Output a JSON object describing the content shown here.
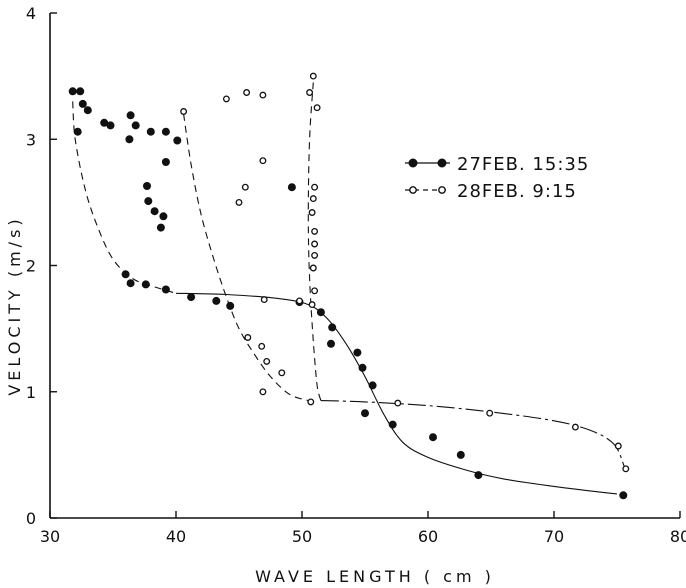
{
  "chart_data": {
    "type": "scatter",
    "xlabel": "WAVE LENGTH ( cm )",
    "ylabel": "VELOCITY (m/s)",
    "xlim": [
      30,
      80
    ],
    "ylim": [
      0,
      4
    ],
    "x_ticks": [
      30,
      40,
      50,
      60,
      70,
      80
    ],
    "y_ticks": [
      0,
      1,
      2,
      3,
      4
    ],
    "grid": false,
    "legend_position": "right",
    "series": [
      {
        "name": "27FEB. 15:35",
        "marker": "filled-circle",
        "line_style": "solid",
        "color": "#111111",
        "points": [
          [
            31.8,
            3.38
          ],
          [
            32.4,
            3.38
          ],
          [
            32.2,
            3.06
          ],
          [
            32.6,
            3.28
          ],
          [
            33.0,
            3.23
          ],
          [
            34.3,
            3.13
          ],
          [
            34.8,
            3.11
          ],
          [
            36.3,
            3.0
          ],
          [
            36.4,
            3.19
          ],
          [
            36.8,
            3.11
          ],
          [
            38.0,
            3.06
          ],
          [
            39.2,
            3.06
          ],
          [
            39.2,
            2.82
          ],
          [
            40.1,
            2.99
          ],
          [
            37.7,
            2.63
          ],
          [
            37.8,
            2.51
          ],
          [
            38.3,
            2.43
          ],
          [
            39.0,
            2.39
          ],
          [
            38.8,
            2.3
          ],
          [
            36.0,
            1.93
          ],
          [
            36.4,
            1.86
          ],
          [
            37.6,
            1.85
          ],
          [
            39.2,
            1.81
          ],
          [
            41.2,
            1.75
          ],
          [
            43.2,
            1.72
          ],
          [
            44.3,
            1.68
          ],
          [
            49.2,
            2.62
          ],
          [
            49.8,
            1.71
          ],
          [
            51.5,
            1.63
          ],
          [
            52.4,
            1.51
          ],
          [
            52.3,
            1.38
          ],
          [
            54.4,
            1.31
          ],
          [
            54.8,
            1.19
          ],
          [
            55.6,
            1.05
          ],
          [
            55.0,
            0.83
          ],
          [
            57.2,
            0.74
          ],
          [
            60.4,
            0.64
          ],
          [
            62.6,
            0.5
          ],
          [
            64.0,
            0.34
          ],
          [
            75.5,
            0.18
          ]
        ],
        "fit_curve": [
          [
            40.0,
            1.78
          ],
          [
            44.0,
            1.77
          ],
          [
            48.0,
            1.74
          ],
          [
            50.5,
            1.69
          ],
          [
            52.0,
            1.58
          ],
          [
            53.5,
            1.38
          ],
          [
            55.0,
            1.12
          ],
          [
            56.5,
            0.82
          ],
          [
            58.0,
            0.6
          ],
          [
            60.0,
            0.48
          ],
          [
            63.0,
            0.38
          ],
          [
            66.0,
            0.31
          ],
          [
            70.0,
            0.25
          ],
          [
            75.0,
            0.19
          ]
        ],
        "fit_dashed": [
          [
            31.8,
            3.3
          ],
          [
            32.0,
            3.0
          ],
          [
            32.8,
            2.6
          ],
          [
            33.8,
            2.3
          ],
          [
            35.0,
            2.05
          ],
          [
            36.5,
            1.9
          ],
          [
            38.0,
            1.84
          ],
          [
            40.0,
            1.78
          ]
        ]
      },
      {
        "name": "28FEB. 9:15",
        "marker": "open-circle",
        "line_style": "dash-dot",
        "color": "#111111",
        "points": [
          [
            40.6,
            3.22
          ],
          [
            44.0,
            3.32
          ],
          [
            45.6,
            3.37
          ],
          [
            46.9,
            3.35
          ],
          [
            46.9,
            2.83
          ],
          [
            45.5,
            2.62
          ],
          [
            45.0,
            2.5
          ],
          [
            50.6,
            3.37
          ],
          [
            50.9,
            3.5
          ],
          [
            51.2,
            3.25
          ],
          [
            51.0,
            2.62
          ],
          [
            50.9,
            2.53
          ],
          [
            50.8,
            2.42
          ],
          [
            51.0,
            2.27
          ],
          [
            51.0,
            2.17
          ],
          [
            51.0,
            2.08
          ],
          [
            50.9,
            1.98
          ],
          [
            51.0,
            1.8
          ],
          [
            47.0,
            1.73
          ],
          [
            49.8,
            1.72
          ],
          [
            50.8,
            1.69
          ],
          [
            45.7,
            1.43
          ],
          [
            46.8,
            1.36
          ],
          [
            47.2,
            1.24
          ],
          [
            48.4,
            1.15
          ],
          [
            46.9,
            1.0
          ],
          [
            50.7,
            0.92
          ],
          [
            57.6,
            0.91
          ],
          [
            64.9,
            0.83
          ],
          [
            71.7,
            0.72
          ],
          [
            75.1,
            0.57
          ],
          [
            75.7,
            0.39
          ]
        ],
        "fit_curve": [
          [
            51.5,
            0.93
          ],
          [
            55.0,
            0.92
          ],
          [
            60.0,
            0.89
          ],
          [
            65.0,
            0.84
          ],
          [
            70.0,
            0.77
          ],
          [
            73.0,
            0.69
          ],
          [
            74.8,
            0.58
          ],
          [
            75.6,
            0.4
          ]
        ],
        "fit_dashed_left": [
          [
            40.6,
            3.2
          ],
          [
            41.2,
            2.8
          ],
          [
            42.0,
            2.4
          ],
          [
            43.0,
            2.05
          ],
          [
            44.0,
            1.75
          ],
          [
            45.0,
            1.5
          ],
          [
            46.2,
            1.3
          ],
          [
            47.5,
            1.12
          ],
          [
            49.0,
            0.98
          ],
          [
            50.5,
            0.93
          ]
        ],
        "fit_dashed_vertical": [
          [
            50.9,
            3.45
          ],
          [
            50.6,
            3.0
          ],
          [
            50.5,
            2.4
          ],
          [
            50.6,
            1.9
          ],
          [
            50.9,
            1.4
          ],
          [
            51.2,
            1.05
          ],
          [
            51.5,
            0.93
          ]
        ]
      }
    ]
  }
}
